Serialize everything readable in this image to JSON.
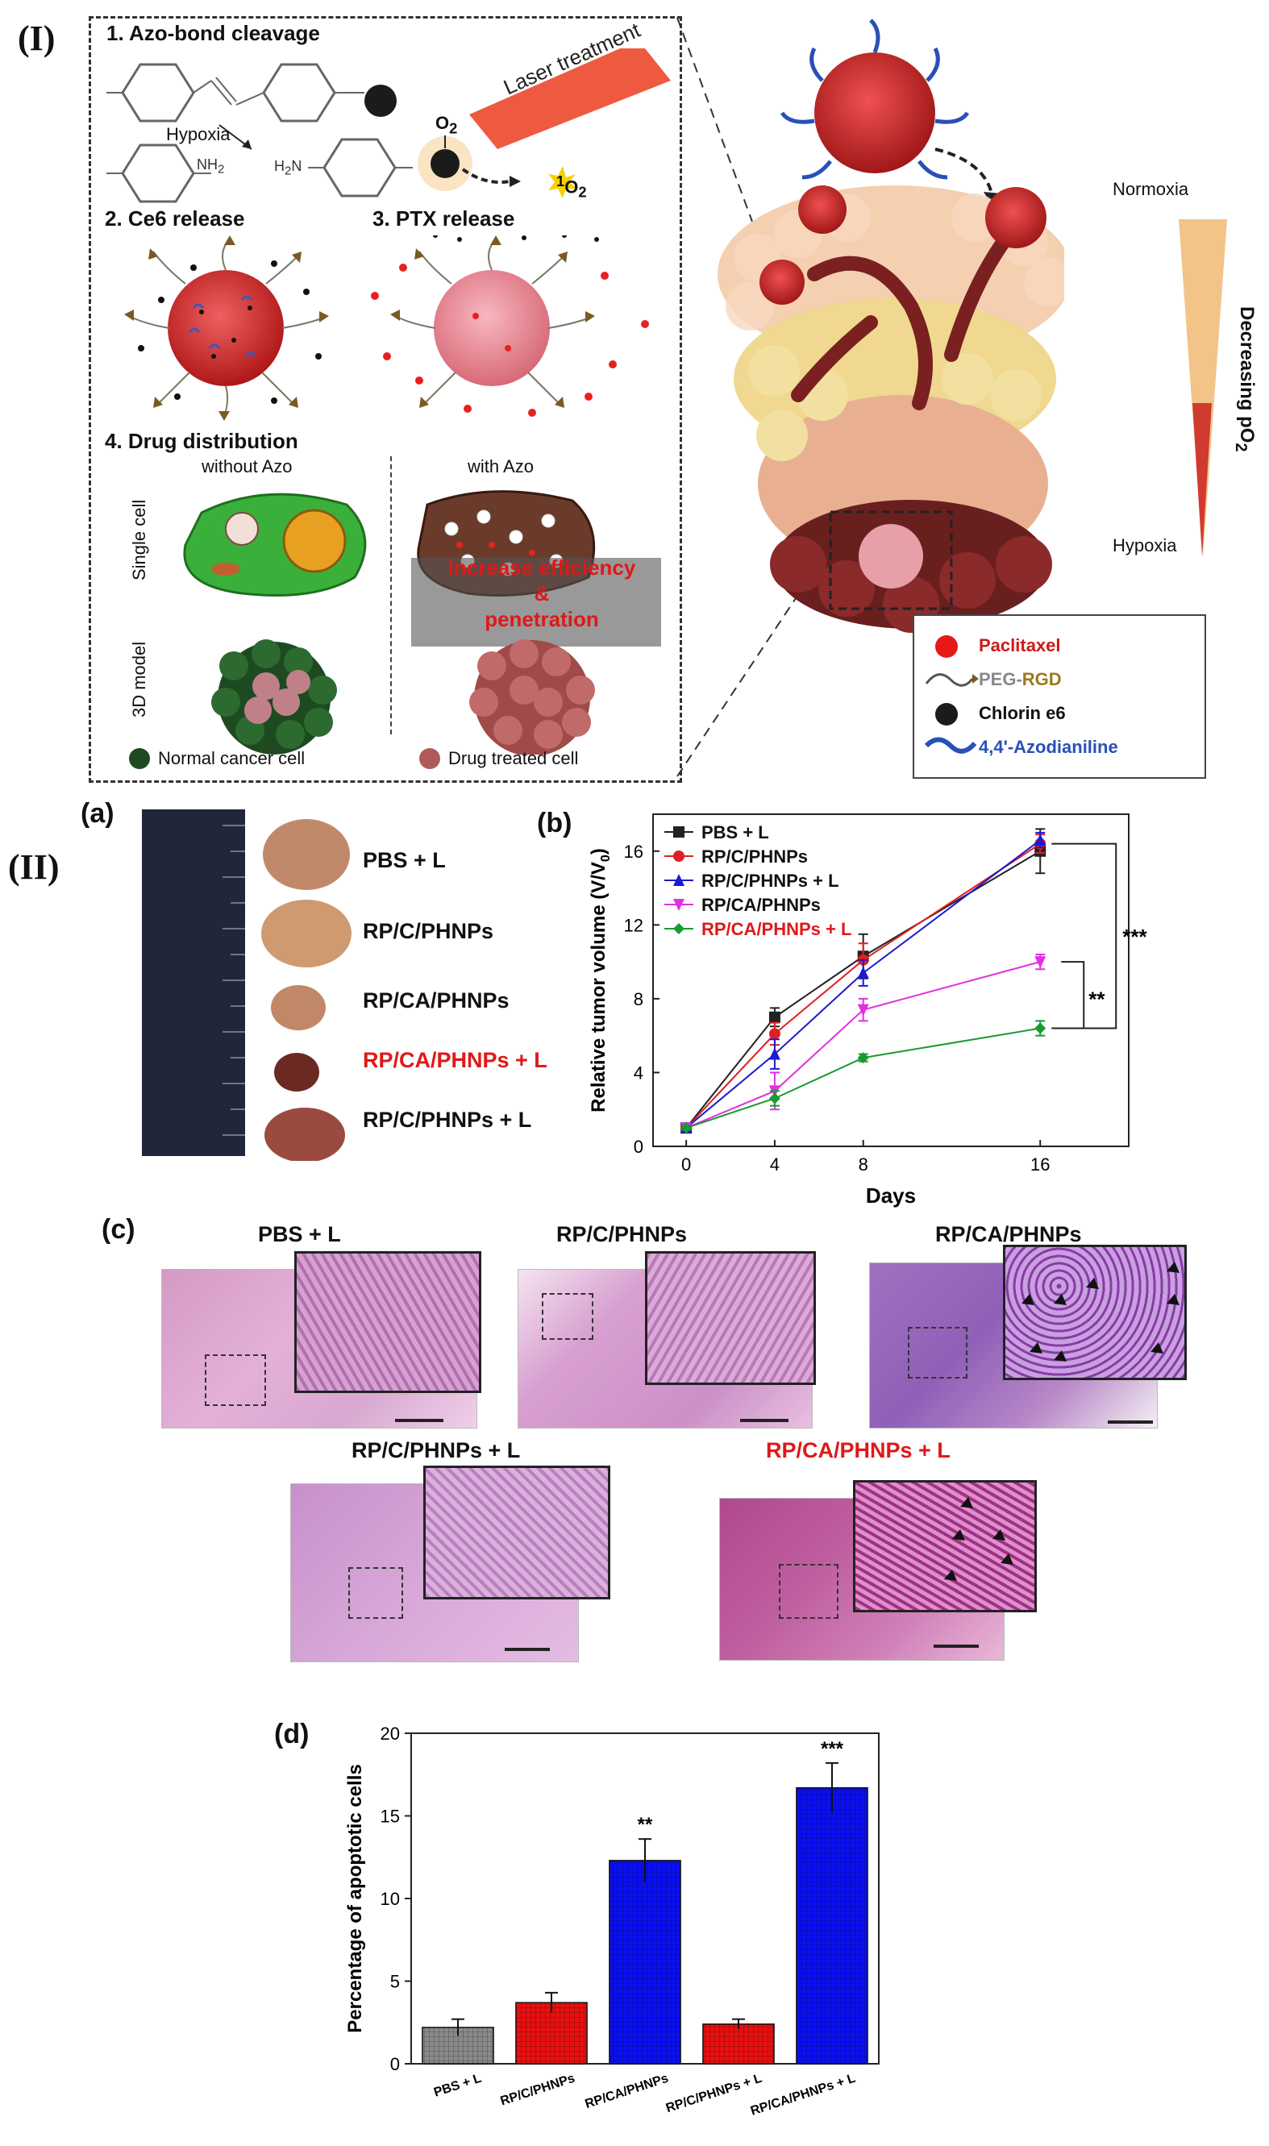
{
  "panel_I": {
    "label": "(I)",
    "step1": "1. Azo-bond cleavage",
    "hypoxia_arrow": "Hypoxia",
    "o2": "O",
    "o2_sub": "2",
    "singlet": "O",
    "singlet_sup": "1",
    "singlet_sub": "2",
    "laser": "Laser treatment",
    "nh2": "NH",
    "nh2_sub": "2",
    "h2n": "H",
    "h2n_sub": "2",
    "h2n_n": "N",
    "step2": "2. Ce6 release",
    "step3": "3. PTX release",
    "step4": "4. Drug distribution",
    "without_azo": "without Azo",
    "with_azo": "with Azo",
    "single_cell": "Single cell",
    "model_3d": "3D model",
    "increase_line1": "Increase efficiency",
    "increase_line2": "&",
    "increase_line3": "penetration",
    "legend_normal": "Normal cancer cell",
    "legend_treated": "Drug treated cell",
    "normoxia": "Normoxia",
    "hypoxia": "Hypoxia",
    "decreasing": "Decreasing pO",
    "decreasing_sub": "2",
    "key": {
      "paclitaxel": "Paclitaxel",
      "peg": "PEG-",
      "rgd": "RGD",
      "chlorin": "Chlorin e6",
      "azodianiline": "4,4'-Azodianiline"
    }
  },
  "panel_II": {
    "label": "(II)",
    "sub_a": "(a)",
    "sub_b": "(b)",
    "sub_c": "(c)",
    "sub_d": "(d)",
    "tumor_labels": [
      "PBS + L",
      "RP/C/PHNPs",
      "RP/CA/PHNPs",
      "RP/CA/PHNPs + L",
      "RP/C/PHNPs + L"
    ],
    "micro_titles": [
      "PBS + L",
      "RP/C/PHNPs",
      "RP/CA/PHNPs",
      "RP/C/PHNPs + L",
      "RP/CA/PHNPs + L"
    ]
  },
  "chart_data": [
    {
      "type": "line",
      "x": [
        0,
        4,
        8,
        16
      ],
      "xticks": [
        "0",
        "4",
        "8",
        "16"
      ],
      "xlabel": "Days",
      "ylabel": "Relative tumor volume (V/V",
      "ylabel_sub": "0",
      "ylabel_end": ")",
      "ylim": [
        0,
        18
      ],
      "yticks": [
        0,
        4,
        8,
        12,
        16
      ],
      "legend_position": "top-left",
      "series": [
        {
          "name": "PBS + L",
          "color": "#222222",
          "marker": "square",
          "values": [
            1,
            7.0,
            10.3,
            16.0
          ],
          "err": [
            0.1,
            0.5,
            1.2,
            1.2
          ]
        },
        {
          "name": "RP/C/PHNPs",
          "color": "#e02020",
          "marker": "circle",
          "values": [
            1,
            6.1,
            10.1,
            16.4
          ],
          "err": [
            0.1,
            0.6,
            0.9,
            0.5
          ]
        },
        {
          "name": "RP/C/PHNPs + L",
          "color": "#1a1ad0",
          "marker": "triangle",
          "values": [
            1,
            5.0,
            9.4,
            16.6
          ],
          "err": [
            0.1,
            0.8,
            0.7,
            0.4
          ]
        },
        {
          "name": "RP/CA/PHNPs",
          "color": "#e030e0",
          "marker": "triangle-down",
          "values": [
            1,
            3.0,
            7.4,
            10.0
          ],
          "err": [
            0.1,
            1.0,
            0.6,
            0.4
          ]
        },
        {
          "name": "RP/CA/PHNPs + L",
          "color": "#1a9a30",
          "marker": "diamond",
          "values": [
            1,
            2.6,
            4.8,
            6.4
          ],
          "err": [
            0.1,
            0.4,
            0.2,
            0.4
          ]
        }
      ],
      "annotations": [
        "***",
        "**"
      ]
    },
    {
      "type": "bar",
      "categories": [
        "PBS + L",
        "RP/C/PHNPs",
        "RP/CA/PHNPs",
        "RP/C/PHNPs + L",
        "RP/CA/PHNPs + L"
      ],
      "values": [
        2.2,
        3.7,
        12.3,
        2.4,
        16.7
      ],
      "err": [
        0.5,
        0.6,
        1.3,
        0.3,
        1.5
      ],
      "colors": [
        "#8a8a8a",
        "#e81010",
        "#0a10f0",
        "#e81010",
        "#0a10f0"
      ],
      "significance": [
        "",
        "",
        "**",
        "",
        "***"
      ],
      "ylabel": "Percentage of apoptotic cells",
      "ylim": [
        0,
        20
      ],
      "yticks": [
        0,
        5,
        10,
        15,
        20
      ]
    }
  ]
}
